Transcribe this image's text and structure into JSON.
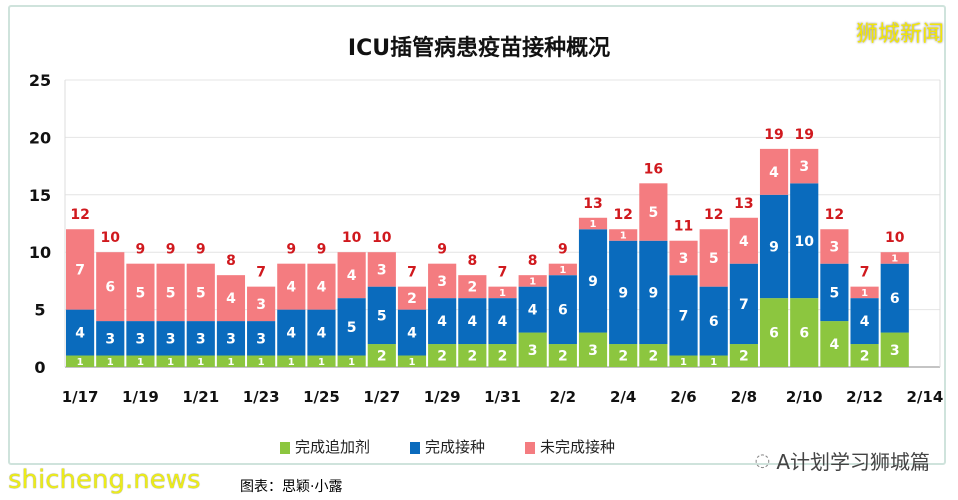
{
  "watermark": "狮城新闻",
  "footer": {
    "site": "shicheng.news",
    "credit": "图表：思颖·小露",
    "brand": "A计划学习狮城篇"
  },
  "colors": {
    "booster": "#8cc63f",
    "completed": "#0a6bbd",
    "incomplete": "#f47c80",
    "total_label": "#d0191e"
  },
  "chart_data": {
    "type": "bar",
    "stacked": true,
    "title": "ICU插管病患疫苗接种概况",
    "categories": [
      "1/17",
      "1/18",
      "1/19",
      "1/20",
      "1/21",
      "1/22",
      "1/23",
      "1/24",
      "1/25",
      "1/26",
      "1/27",
      "1/28",
      "1/29",
      "1/30",
      "1/31",
      "2/1",
      "2/2",
      "2/3",
      "2/4",
      "2/5",
      "2/6",
      "2/7",
      "2/8",
      "2/9",
      "2/10",
      "2/11",
      "2/12",
      "2/13"
    ],
    "x_tick_labels": [
      "1/17",
      "1/19",
      "1/21",
      "1/23",
      "1/25",
      "1/27",
      "1/29",
      "1/31",
      "2/2",
      "2/4",
      "2/6",
      "2/8",
      "2/10",
      "2/12",
      "2/14"
    ],
    "series": [
      {
        "name": "完成追加剂",
        "values": [
          1,
          1,
          1,
          1,
          1,
          1,
          1,
          1,
          1,
          1,
          2,
          1,
          2,
          2,
          2,
          3,
          2,
          3,
          2,
          2,
          1,
          1,
          2,
          6,
          6,
          4,
          2,
          3
        ]
      },
      {
        "name": "完成接种",
        "values": [
          4,
          3,
          3,
          3,
          3,
          3,
          3,
          4,
          4,
          5,
          5,
          4,
          4,
          4,
          4,
          4,
          6,
          9,
          9,
          9,
          7,
          6,
          7,
          9,
          10,
          5,
          4,
          6
        ]
      },
      {
        "name": "未完成接种",
        "values": [
          7,
          6,
          5,
          5,
          5,
          4,
          3,
          4,
          4,
          4,
          3,
          2,
          3,
          2,
          1,
          1,
          1,
          1,
          1,
          5,
          3,
          5,
          4,
          4,
          3,
          3,
          1,
          1
        ]
      }
    ],
    "totals": [
      12,
      10,
      9,
      9,
      9,
      8,
      7,
      9,
      9,
      10,
      10,
      7,
      9,
      8,
      7,
      8,
      9,
      13,
      12,
      16,
      11,
      12,
      13,
      19,
      19,
      12,
      7,
      10
    ],
    "ylim": [
      0,
      25
    ],
    "y_ticks": [
      0,
      5,
      10,
      15,
      20,
      25
    ],
    "grid": true,
    "legend": "bottom",
    "xlabel": "",
    "ylabel": ""
  }
}
